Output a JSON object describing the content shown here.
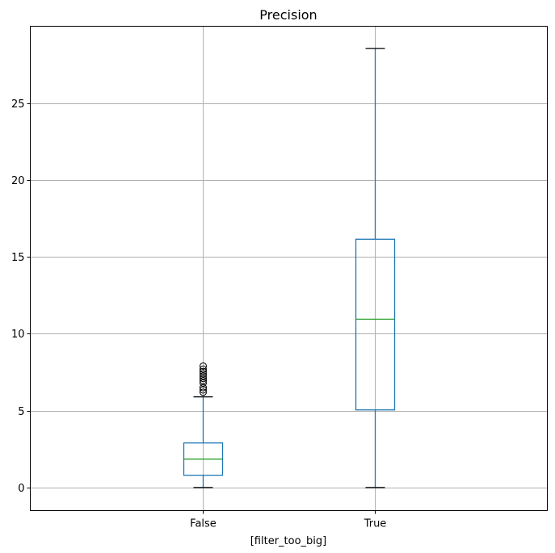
{
  "chart_data": {
    "type": "boxplot",
    "title": "Precision",
    "xlabel": "[filter_too_big]",
    "ylabel": "",
    "categories": [
      "False",
      "True"
    ],
    "ylim": [
      -1.5,
      30
    ],
    "yticks": [
      0,
      5,
      10,
      15,
      20,
      25
    ],
    "grid": true,
    "boxes": [
      {
        "category": "False",
        "whisker_low": 0,
        "q1": 0.8,
        "median": 1.85,
        "q3": 2.9,
        "whisker_high": 5.9,
        "outliers": [
          6.2,
          6.35,
          6.5,
          6.8,
          6.95,
          7.1,
          7.25,
          7.4,
          7.55,
          7.7,
          7.9
        ]
      },
      {
        "category": "True",
        "whisker_low": 0,
        "q1": 5.05,
        "median": 10.95,
        "q3": 16.15,
        "whisker_high": 28.55,
        "outliers": []
      }
    ],
    "colors": {
      "box": "#1f77b4",
      "median": "#2ca02c",
      "grid": "#b0b0b0",
      "cap": "#000000"
    }
  }
}
